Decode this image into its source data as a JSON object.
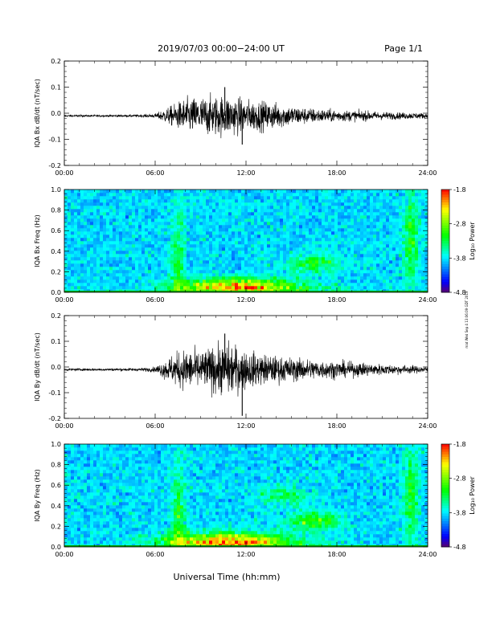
{
  "header": {
    "title": "2019/07/03  00:00−24:00 UT",
    "page": "Page 1/1"
  },
  "footer": {
    "xlabel": "Universal Time (hh:mm)",
    "side_note": "mat Wed Sep 4 13:06:09 GDT 2019"
  },
  "chart_data": [
    {
      "type": "line",
      "ylabel": "IQA Bx dB/dt (nT/sec)",
      "xlim": [
        0,
        24
      ],
      "ylim": [
        -0.2,
        0.2
      ],
      "x_ticks": [
        "00:00",
        "06:00",
        "12:00",
        "18:00",
        "24:00"
      ],
      "y_ticks": [
        "-0.2",
        "-0.1",
        "0.0",
        "0.1",
        "0.2"
      ],
      "series": [
        {
          "envelope_x": [
            0,
            3,
            5,
            6,
            6.5,
            7,
            7.5,
            8,
            9,
            10,
            11,
            12,
            13,
            14,
            15,
            16,
            17,
            18,
            19,
            20,
            21,
            22,
            23,
            24
          ],
          "envelope_amp": [
            0.004,
            0.004,
            0.005,
            0.008,
            0.022,
            0.035,
            0.05,
            0.065,
            0.07,
            0.075,
            0.075,
            0.06,
            0.055,
            0.048,
            0.038,
            0.03,
            0.025,
            0.022,
            0.02,
            0.018,
            0.015,
            0.013,
            0.012,
            0.01
          ],
          "min": -0.12,
          "max": 0.1
        }
      ]
    },
    {
      "type": "heatmap",
      "ylabel": "IQA Bx Freq (Hz)",
      "xlim": [
        0,
        24
      ],
      "ylim": [
        0,
        1.0
      ],
      "x_ticks": [
        "00:00",
        "06:00",
        "12:00",
        "18:00",
        "24:00"
      ],
      "y_ticks": [
        "0.0",
        "0.2",
        "0.4",
        "0.6",
        "0.8",
        "1.0"
      ],
      "colorbar": {
        "label": "Log₁₀ Power",
        "range": [
          -4.8,
          -1.8
        ],
        "ticks": [
          "-1.8",
          "-2.8",
          "-3.8",
          "-4.8"
        ]
      },
      "features": [
        {
          "t": 11.5,
          "f": 0.05,
          "level": -2.2
        },
        {
          "t": 16.5,
          "f": 0.28,
          "level": -3.2
        },
        {
          "t": 7.5,
          "f": 0.3,
          "level": -3.3
        },
        {
          "t": 22.9,
          "f": 0.5,
          "level": -3.2
        }
      ]
    },
    {
      "type": "line",
      "ylabel": "IQA By dB/dt (nT/sec)",
      "xlim": [
        0,
        24
      ],
      "ylim": [
        -0.2,
        0.2
      ],
      "x_ticks": [
        "00:00",
        "06:00",
        "12:00",
        "18:00",
        "24:00"
      ],
      "y_ticks": [
        "-0.2",
        "-0.1",
        "0.0",
        "0.1",
        "0.2"
      ],
      "series": [
        {
          "envelope_x": [
            0,
            3,
            5,
            6,
            6.5,
            7,
            7.5,
            8,
            9,
            10,
            11,
            12,
            13,
            14,
            15,
            16,
            17,
            18,
            19,
            20,
            21,
            22,
            23,
            24
          ],
          "envelope_amp": [
            0.004,
            0.005,
            0.006,
            0.01,
            0.03,
            0.05,
            0.065,
            0.075,
            0.07,
            0.09,
            0.1,
            0.07,
            0.06,
            0.05,
            0.045,
            0.04,
            0.035,
            0.032,
            0.028,
            0.025,
            0.02,
            0.018,
            0.015,
            0.012
          ],
          "min": -0.19,
          "max": 0.13
        }
      ]
    },
    {
      "type": "heatmap",
      "ylabel": "IQA By Freq (Hz)",
      "xlim": [
        0,
        24
      ],
      "ylim": [
        0,
        1.0
      ],
      "x_ticks": [
        "00:00",
        "06:00",
        "12:00",
        "18:00",
        "24:00"
      ],
      "y_ticks": [
        "0.0",
        "0.2",
        "0.4",
        "0.6",
        "0.8",
        "1.0"
      ],
      "colorbar": {
        "label": "Log₁₀ Power",
        "range": [
          -4.8,
          -1.8
        ],
        "ticks": [
          "-1.8",
          "-2.8",
          "-3.8",
          "-4.8"
        ]
      },
      "features": [
        {
          "t": 10.8,
          "f": 0.05,
          "level": -2.1
        },
        {
          "t": 16.5,
          "f": 0.25,
          "level": -3.0
        },
        {
          "t": 7.5,
          "f": 0.3,
          "level": -3.2
        },
        {
          "t": 14.5,
          "f": 0.5,
          "level": -3.3
        },
        {
          "t": 22.9,
          "f": 0.5,
          "level": -3.2
        }
      ]
    }
  ]
}
